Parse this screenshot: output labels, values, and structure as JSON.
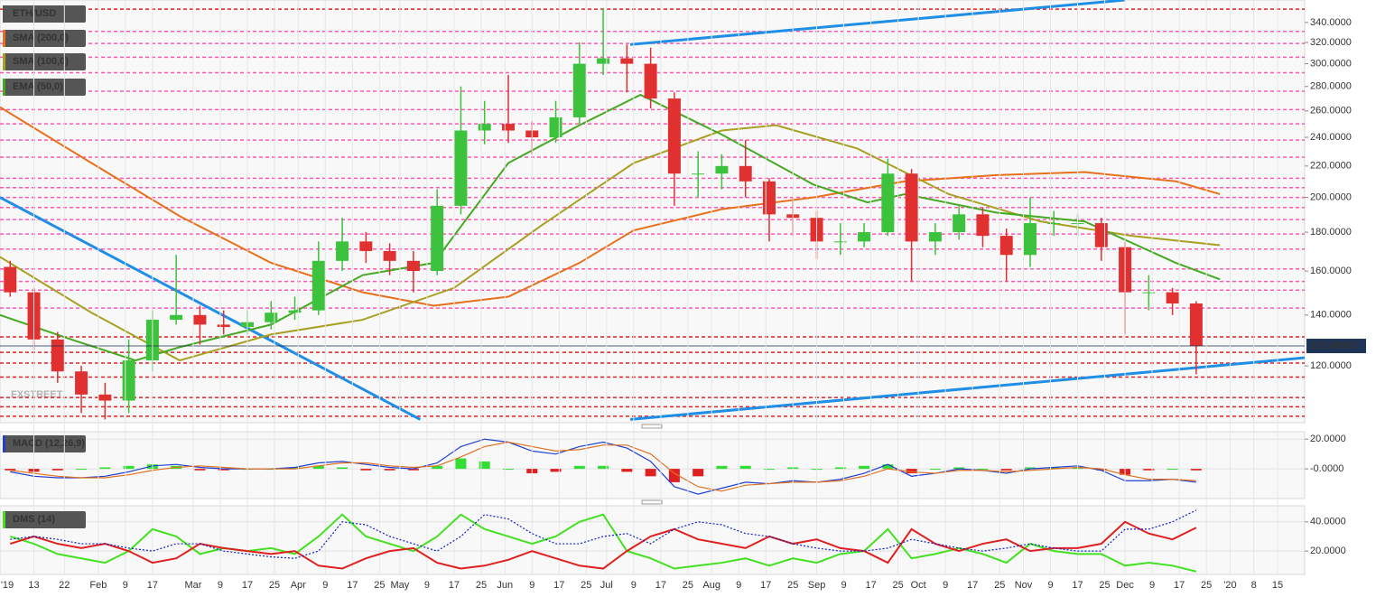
{
  "chart_data": [
    {
      "type": "candlestick",
      "name": "ETH/USD",
      "log": true,
      "watermark": "FXSTREET",
      "up_color": "#3cc23c",
      "down_color": "#e03030",
      "xlim": [
        2,
        387
      ],
      "ylim": [
        101,
        364
      ],
      "yticks": [
        {
          "value": 120,
          "label": "120.0000"
        },
        {
          "value": 140,
          "label": "140.0000"
        },
        {
          "value": 160,
          "label": "160.0000"
        },
        {
          "value": 180,
          "label": "180.0000"
        },
        {
          "value": 200,
          "label": "200.0000"
        },
        {
          "value": 220,
          "label": "220.0000"
        },
        {
          "value": 240,
          "label": "240.0000"
        },
        {
          "value": 260,
          "label": "260.0000"
        },
        {
          "value": 280,
          "label": "280.0000"
        },
        {
          "value": 300,
          "label": "300.0000"
        },
        {
          "value": 320,
          "label": "320.0000"
        },
        {
          "value": 340,
          "label": "340.0000"
        }
      ],
      "x": [
        5,
        12,
        19,
        26,
        33,
        40,
        47,
        54,
        61,
        68,
        75,
        82,
        89,
        96,
        103,
        110,
        117,
        124,
        131,
        138,
        145,
        152,
        159,
        166,
        173,
        180,
        187,
        194,
        201,
        208,
        215,
        222,
        229,
        236,
        243,
        250,
        257,
        264,
        271,
        278,
        285,
        292,
        299,
        306,
        313,
        320,
        327,
        334,
        341,
        348,
        355
      ],
      "open": [
        162,
        150,
        130,
        118,
        110,
        108,
        122,
        138,
        140,
        136,
        135,
        137,
        141,
        142,
        165,
        175,
        170,
        165,
        160,
        195,
        245,
        250,
        245,
        240,
        255,
        300,
        305,
        300,
        270,
        215,
        215,
        220,
        210,
        190,
        188,
        175,
        175,
        180,
        215,
        175,
        180,
        190,
        178,
        168,
        185,
        185,
        185,
        172,
        150,
        150,
        145
      ],
      "high": [
        165,
        152,
        133,
        120,
        114,
        130,
        142,
        168,
        144,
        142,
        142,
        146,
        148,
        175,
        188,
        180,
        174,
        170,
        205,
        280,
        268,
        290,
        252,
        268,
        320,
        355,
        318,
        315,
        275,
        230,
        228,
        238,
        212,
        200,
        192,
        185,
        185,
        225,
        218,
        185,
        196,
        194,
        182,
        200,
        192,
        190,
        188,
        175,
        158,
        152,
        146
      ],
      "low": [
        148,
        126,
        114,
        104,
        102,
        104,
        118,
        136,
        128,
        132,
        132,
        134,
        138,
        140,
        160,
        164,
        158,
        150,
        158,
        190,
        235,
        236,
        228,
        236,
        250,
        290,
        275,
        262,
        195,
        200,
        205,
        200,
        175,
        178,
        166,
        168,
        172,
        178,
        155,
        168,
        176,
        172,
        155,
        162,
        178,
        178,
        165,
        132,
        142,
        140,
        117
      ],
      "close": [
        150,
        130,
        118,
        110,
        108,
        122,
        138,
        140,
        136,
        135,
        137,
        141,
        142,
        165,
        175,
        170,
        165,
        160,
        195,
        245,
        250,
        245,
        240,
        255,
        300,
        305,
        300,
        270,
        215,
        215,
        220,
        210,
        190,
        188,
        175,
        175,
        180,
        215,
        175,
        180,
        190,
        178,
        168,
        185,
        185,
        185,
        172,
        150,
        150,
        145,
        127.46993
      ],
      "last_price": 127.46993,
      "series": [
        {
          "name": "SMA (200,0)",
          "color": "#e8701a",
          "x": [
            2,
            29,
            55,
            82,
            109,
            130,
            152,
            173,
            189,
            215,
            242,
            269,
            296,
            322,
            349,
            362
          ],
          "values": [
            263,
            222,
            189,
            164,
            150,
            144,
            148,
            164,
            181,
            193,
            200,
            210,
            214,
            216,
            210,
            202
          ]
        },
        {
          "name": "SMA (100,0)",
          "color": "#a8a020",
          "x": [
            2,
            29,
            55,
            82,
            109,
            136,
            162,
            189,
            215,
            231,
            255,
            282,
            309,
            336,
            362
          ],
          "values": [
            167,
            141,
            122,
            132,
            138,
            152,
            184,
            222,
            245,
            249,
            232,
            202,
            186,
            178,
            173
          ]
        },
        {
          "name": "EMA (50,0)",
          "color": "#44aa22",
          "x": [
            2,
            23,
            42,
            55,
            82,
            109,
            130,
            152,
            173,
            191,
            215,
            242,
            258,
            269,
            296,
            322,
            349,
            362
          ],
          "values": [
            140,
            130,
            122,
            127,
            136,
            158,
            164,
            222,
            249,
            273,
            242,
            208,
            197,
            202,
            191,
            186,
            164,
            156
          ]
        }
      ],
      "levels": [
        {
          "color": "#e02020",
          "values": [
            354,
            131,
            125,
            121,
            116,
            109,
            106,
            103
          ]
        },
        {
          "color": "#ff55b5",
          "values": [
            331,
            319,
            306,
            292,
            276,
            261,
            250,
            238,
            226,
            212,
            206,
            200,
            194,
            187,
            179,
            171,
            161,
            155,
            151,
            143
          ]
        }
      ],
      "trendlines": [
        {
          "color": "#1e8ee6",
          "x": [
            2,
            126
          ],
          "values": [
            200,
            102
          ]
        },
        {
          "color": "#1e8ee6",
          "x": [
            188,
            334
          ],
          "values": [
            318,
            364
          ]
        },
        {
          "color": "#1e8ee6",
          "x": [
            188,
            387
          ],
          "values": [
            102,
            123
          ]
        }
      ]
    },
    {
      "type": "macd",
      "name": "MACD (12,26,9)",
      "up_color": "#33dd33",
      "down_color": "#e02020",
      "xlim": [
        2,
        387
      ],
      "ylim": [
        -20,
        25
      ],
      "yticks": [
        {
          "value": 0,
          "label": "-0.0000"
        },
        {
          "value": 20,
          "label": "20.0000"
        }
      ],
      "x": [
        5,
        12,
        19,
        26,
        33,
        40,
        47,
        54,
        61,
        68,
        75,
        82,
        89,
        96,
        103,
        110,
        117,
        124,
        131,
        138,
        145,
        152,
        159,
        166,
        173,
        180,
        187,
        194,
        201,
        208,
        215,
        222,
        229,
        236,
        243,
        250,
        257,
        264,
        271,
        278,
        285,
        292,
        299,
        306,
        313,
        320,
        327,
        334,
        341,
        348,
        355
      ],
      "histogram": [
        -1,
        -2,
        -1,
        0,
        1,
        2,
        3,
        2,
        -1,
        -1,
        0,
        0,
        1,
        2,
        1,
        -1,
        -1,
        -1,
        2,
        7,
        5,
        0,
        -3,
        -2,
        2,
        2,
        -2,
        -5,
        -9,
        -5,
        2,
        2,
        0,
        1,
        0,
        1,
        2,
        3,
        -3,
        0,
        1,
        0,
        -1,
        1,
        1,
        1,
        -1,
        -4,
        -1,
        0,
        -1
      ],
      "series": [
        {
          "color": "#2040d0",
          "values": [
            -2,
            -5,
            -6,
            -6,
            -5,
            -2,
            2,
            3,
            1,
            0,
            0,
            0,
            1,
            4,
            5,
            3,
            1,
            0,
            4,
            15,
            20,
            18,
            12,
            10,
            15,
            18,
            14,
            5,
            -12,
            -17,
            -13,
            -9,
            -10,
            -8,
            -9,
            -7,
            -3,
            3,
            -5,
            -3,
            0,
            -1,
            -3,
            0,
            1,
            2,
            -1,
            -8,
            -8,
            -7,
            -9
          ]
        },
        {
          "color": "#e07020",
          "values": [
            -1,
            -3,
            -5,
            -6,
            -6,
            -4,
            -1,
            1,
            2,
            1,
            0,
            0,
            0,
            2,
            4,
            4,
            2,
            1,
            2,
            8,
            15,
            18,
            15,
            12,
            13,
            16,
            16,
            10,
            -3,
            -12,
            -15,
            -11,
            -10,
            -9,
            -9,
            -8,
            -5,
            0,
            -2,
            -3,
            -1,
            -1,
            -2,
            -1,
            0,
            1,
            0,
            -4,
            -7,
            -7,
            -8
          ]
        }
      ]
    },
    {
      "type": "dms",
      "name": "DMS (14)",
      "xlim": [
        2,
        387
      ],
      "ylim": [
        4,
        51
      ],
      "yticks": [
        {
          "value": 20,
          "label": "20.0000"
        },
        {
          "value": 40,
          "label": "40.0000"
        }
      ],
      "x": [
        5,
        12,
        19,
        26,
        33,
        40,
        47,
        54,
        61,
        68,
        75,
        82,
        89,
        96,
        103,
        110,
        117,
        124,
        131,
        138,
        145,
        152,
        159,
        166,
        173,
        180,
        187,
        194,
        201,
        208,
        215,
        222,
        229,
        236,
        243,
        250,
        257,
        264,
        271,
        278,
        285,
        292,
        299,
        306,
        313,
        320,
        327,
        334,
        341,
        348,
        355
      ],
      "series": [
        {
          "color": "#44e022",
          "dashed": false,
          "values": [
            30,
            25,
            18,
            15,
            12,
            20,
            35,
            30,
            18,
            22,
            20,
            22,
            18,
            30,
            45,
            30,
            25,
            20,
            30,
            45,
            35,
            30,
            25,
            30,
            40,
            45,
            20,
            15,
            8,
            10,
            12,
            15,
            10,
            15,
            12,
            18,
            20,
            35,
            15,
            18,
            22,
            18,
            12,
            25,
            20,
            18,
            18,
            10,
            12,
            10,
            6
          ]
        },
        {
          "color": "#e02020",
          "dashed": false,
          "values": [
            25,
            30,
            25,
            22,
            25,
            20,
            12,
            15,
            25,
            22,
            20,
            18,
            20,
            10,
            8,
            15,
            20,
            22,
            12,
            8,
            10,
            14,
            20,
            15,
            10,
            8,
            20,
            30,
            35,
            28,
            25,
            22,
            30,
            25,
            28,
            22,
            20,
            12,
            35,
            25,
            20,
            25,
            28,
            20,
            22,
            22,
            25,
            40,
            32,
            28,
            36
          ]
        },
        {
          "color": "#1020c0",
          "dashed": true,
          "values": [
            28,
            30,
            28,
            25,
            25,
            22,
            20,
            25,
            25,
            20,
            18,
            16,
            15,
            20,
            40,
            38,
            30,
            25,
            20,
            30,
            45,
            42,
            32,
            25,
            25,
            30,
            32,
            25,
            35,
            40,
            38,
            32,
            30,
            25,
            22,
            20,
            20,
            22,
            28,
            25,
            22,
            20,
            22,
            25,
            22,
            20,
            20,
            35,
            35,
            40,
            48
          ]
        }
      ],
      "xticks": [
        {
          "value": 0,
          "label": "'19"
        },
        {
          "value": 12,
          "label": "13"
        },
        {
          "value": 21,
          "label": "22"
        },
        {
          "value": 31,
          "label": "Feb"
        },
        {
          "value": 39,
          "label": "9"
        },
        {
          "value": 47,
          "label": "17"
        },
        {
          "value": 59,
          "label": "Mar"
        },
        {
          "value": 67,
          "label": "9"
        },
        {
          "value": 75,
          "label": "17"
        },
        {
          "value": 83,
          "label": "25"
        },
        {
          "value": 90,
          "label": "Apr"
        },
        {
          "value": 98,
          "label": "9"
        },
        {
          "value": 106,
          "label": "17"
        },
        {
          "value": 114,
          "label": "25"
        },
        {
          "value": 120,
          "label": "May"
        },
        {
          "value": 128,
          "label": "9"
        },
        {
          "value": 136,
          "label": "17"
        },
        {
          "value": 144,
          "label": "25"
        },
        {
          "value": 151,
          "label": "Jun"
        },
        {
          "value": 159,
          "label": "9"
        },
        {
          "value": 167,
          "label": "17"
        },
        {
          "value": 175,
          "label": "25"
        },
        {
          "value": 181,
          "label": "Jul"
        },
        {
          "value": 189,
          "label": "9"
        },
        {
          "value": 197,
          "label": "17"
        },
        {
          "value": 205,
          "label": "25"
        },
        {
          "value": 212,
          "label": "Aug"
        },
        {
          "value": 220,
          "label": "9"
        },
        {
          "value": 228,
          "label": "17"
        },
        {
          "value": 236,
          "label": "25"
        },
        {
          "value": 243,
          "label": "Sep"
        },
        {
          "value": 251,
          "label": "9"
        },
        {
          "value": 259,
          "label": "17"
        },
        {
          "value": 267,
          "label": "25"
        },
        {
          "value": 273,
          "label": "Oct"
        },
        {
          "value": 281,
          "label": "9"
        },
        {
          "value": 289,
          "label": "17"
        },
        {
          "value": 297,
          "label": "25"
        },
        {
          "value": 304,
          "label": "Nov"
        },
        {
          "value": 312,
          "label": "9"
        },
        {
          "value": 320,
          "label": "17"
        },
        {
          "value": 328,
          "label": "25"
        },
        {
          "value": 334,
          "label": "Dec"
        },
        {
          "value": 342,
          "label": "9"
        },
        {
          "value": 350,
          "label": "17"
        },
        {
          "value": 358,
          "label": "25"
        },
        {
          "value": 365,
          "label": "'20"
        },
        {
          "value": 372,
          "label": "8"
        },
        {
          "value": 379,
          "label": "15"
        }
      ]
    }
  ]
}
